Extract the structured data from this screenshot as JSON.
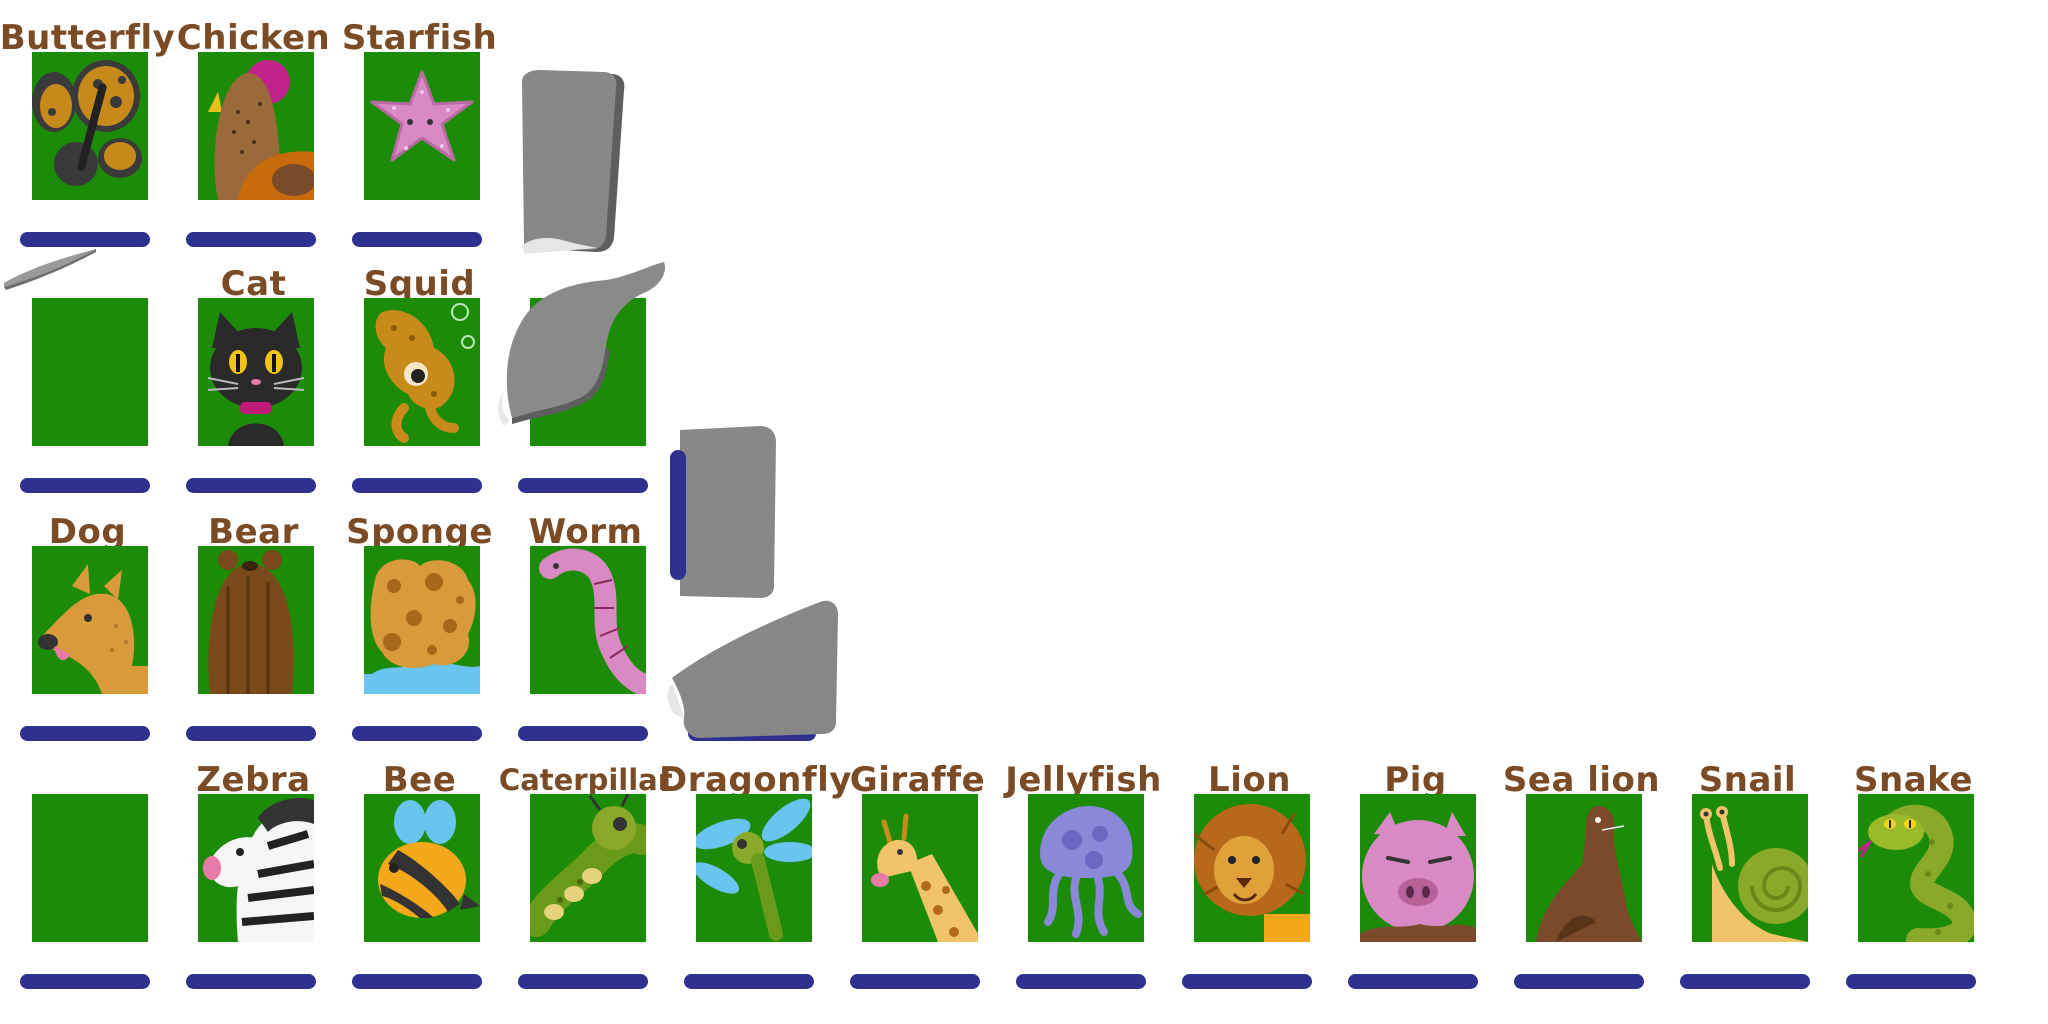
{
  "board": {
    "cards": [
      {
        "row": 0,
        "col": 0,
        "name": "Butterfly",
        "icon": "butterfly-icon"
      },
      {
        "row": 0,
        "col": 1,
        "name": "Chicken",
        "icon": "chicken-icon"
      },
      {
        "row": 0,
        "col": 2,
        "name": "Starfish",
        "icon": "starfish-icon"
      },
      {
        "row": 0,
        "col": 3,
        "name": "",
        "icon": "",
        "hidden": true
      },
      {
        "row": 1,
        "col": 0,
        "name": "",
        "icon": "",
        "blank": true
      },
      {
        "row": 1,
        "col": 1,
        "name": "Cat",
        "icon": "cat-icon"
      },
      {
        "row": 1,
        "col": 2,
        "name": "Squid",
        "icon": "squid-icon"
      },
      {
        "row": 1,
        "col": 3,
        "name": "",
        "icon": "",
        "blank": true
      },
      {
        "row": 2,
        "col": 0,
        "name": "Dog",
        "icon": "dog-icon"
      },
      {
        "row": 2,
        "col": 1,
        "name": "Bear",
        "icon": "bear-icon"
      },
      {
        "row": 2,
        "col": 2,
        "name": "Sponge",
        "icon": "sponge-icon"
      },
      {
        "row": 2,
        "col": 3,
        "name": "Worm",
        "icon": "worm-icon"
      },
      {
        "row": 3,
        "col": 0,
        "name": "",
        "icon": "",
        "blank": true
      },
      {
        "row": 3,
        "col": 1,
        "name": "Zebra",
        "icon": "zebra-icon"
      },
      {
        "row": 3,
        "col": 2,
        "name": "Bee",
        "icon": "bee-icon"
      },
      {
        "row": 3,
        "col": 3,
        "name": "Caterpillar",
        "icon": "caterpillar-icon"
      },
      {
        "row": 3,
        "col": 4,
        "name": "Dragonfly",
        "icon": "dragonfly-icon"
      },
      {
        "row": 3,
        "col": 5,
        "name": "Giraffe",
        "icon": "giraffe-icon"
      },
      {
        "row": 3,
        "col": 6,
        "name": "Jellyfish",
        "icon": "jellyfish-icon"
      },
      {
        "row": 3,
        "col": 7,
        "name": "Lion",
        "icon": "lion-icon"
      },
      {
        "row": 3,
        "col": 8,
        "name": "Pig",
        "icon": "pig-icon"
      },
      {
        "row": 3,
        "col": 9,
        "name": "Sea lion",
        "icon": "sea-lion-icon"
      },
      {
        "row": 3,
        "col": 10,
        "name": "Snail",
        "icon": "snail-icon"
      },
      {
        "row": 3,
        "col": 11,
        "name": "Snake",
        "icon": "snake-icon"
      }
    ],
    "flipping_cards": [
      {
        "name": "flipping-card-1",
        "icon": "card-back-icon"
      },
      {
        "name": "flipping-card-2",
        "icon": "card-back-icon"
      },
      {
        "name": "flipping-card-3",
        "icon": "card-back-icon"
      },
      {
        "name": "flipping-card-4",
        "icon": "card-back-icon"
      },
      {
        "name": "flipping-card-5",
        "icon": "card-back-icon"
      }
    ]
  },
  "colors": {
    "background": "#ffffff",
    "card": "#1c8c08",
    "label": "#7a4b25",
    "slot_bar": "#2e3190",
    "card_back": "#858585"
  }
}
